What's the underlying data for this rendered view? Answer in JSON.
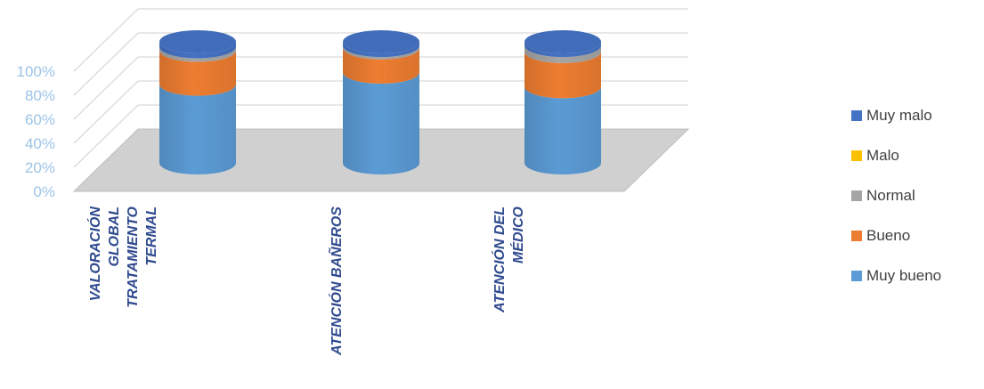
{
  "chart_data": {
    "type": "bar",
    "stacked": true,
    "percent": true,
    "style": "3d-cylinder",
    "categories": [
      [
        "VALORACIÓN",
        "GLOBAL",
        "TRATAMIENTO",
        "TERMAL"
      ],
      [
        "ATENCIÓN BAÑEROS"
      ],
      [
        "ATENCIÓN DEL",
        "MÉDICO"
      ]
    ],
    "series": [
      {
        "name": "Muy bueno",
        "color": "#5b9bd5",
        "values": [
          65,
          75,
          63
        ]
      },
      {
        "name": "Bueno",
        "color": "#ed7d31",
        "values": [
          28,
          20,
          29
        ]
      },
      {
        "name": "Normal",
        "color": "#a5a5a5",
        "values": [
          3,
          2,
          5
        ]
      },
      {
        "name": "Malo",
        "color": "#ffc000",
        "values": [
          0,
          0,
          0
        ]
      },
      {
        "name": "Muy malo",
        "color": "#4472c4",
        "values": [
          4,
          3,
          3
        ]
      }
    ],
    "ylim": [
      0,
      100
    ],
    "yticks": [
      "0%",
      "20%",
      "40%",
      "60%",
      "80%",
      "100%"
    ],
    "legend_order": [
      "Muy malo",
      "Malo",
      "Normal",
      "Bueno",
      "Muy bueno"
    ],
    "legend_position": "right",
    "grid": true
  }
}
